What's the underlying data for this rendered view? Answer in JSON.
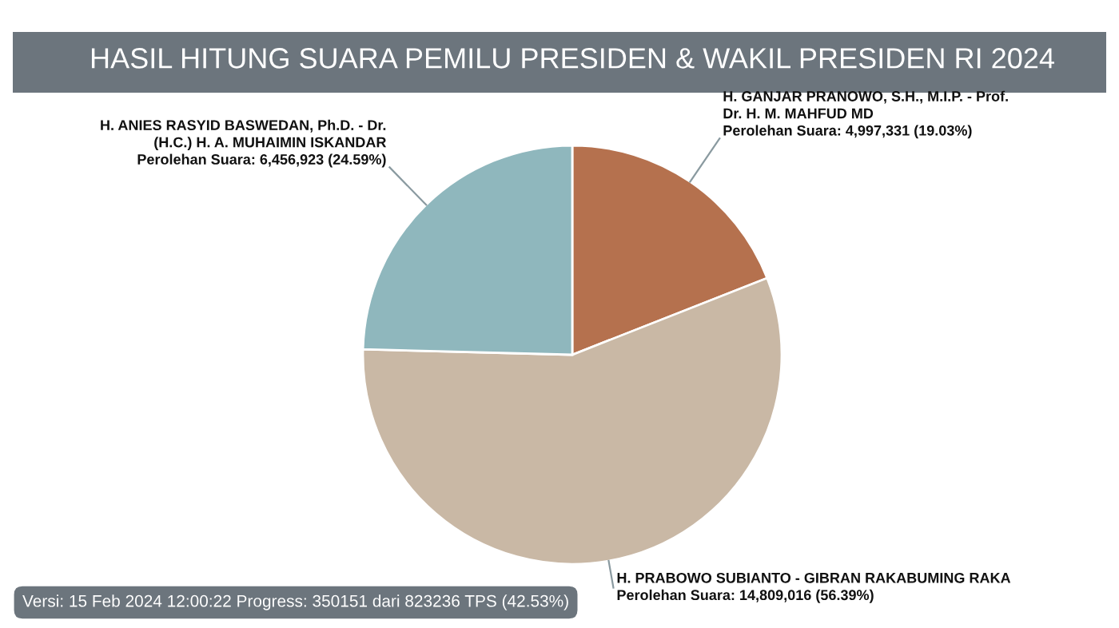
{
  "chart_data": {
    "type": "pie",
    "title": "HASIL HITUNG SUARA PEMILU PRESIDEN & WAKIL PRESIDEN RI 2024",
    "categories": [
      "H. GANJAR PRANOWO, S.H., M.I.P. - Prof.\nDr. H. M. MAHFUD MD",
      "H. PRABOWO SUBIANTO - GIBRAN RAKABUMING RAKA",
      "H. ANIES RASYID BASWEDAN, Ph.D. - Dr.\n(H.C.) H. A. MUHAIMIN ISKANDAR"
    ],
    "values": [
      4997331,
      14809016,
      6456923
    ],
    "colors": [
      "#b5714e",
      "#c9b8a5",
      "#8fb7bd"
    ],
    "value_labels": [
      "Perolehan Suara: 4,997,331 (19.03%)",
      "Perolehan Suara: 14,809,016 (56.39%)",
      "Perolehan Suara: 6,456,923 (24.59%)"
    ],
    "annotations": [
      "Versi: 15 Feb 2024 12:00:22 Progress: 350151 dari 823236 TPS (42.53%)"
    ],
    "legend": false
  }
}
